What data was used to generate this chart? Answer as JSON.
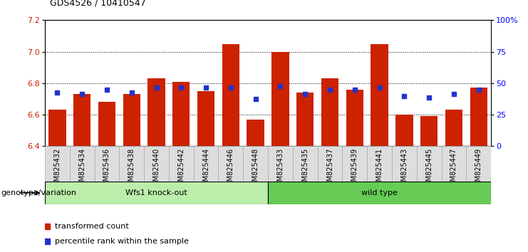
{
  "title": "GDS4526 / 10410547",
  "samples": [
    "GSM825432",
    "GSM825434",
    "GSM825436",
    "GSM825438",
    "GSM825440",
    "GSM825442",
    "GSM825444",
    "GSM825446",
    "GSM825448",
    "GSM825433",
    "GSM825435",
    "GSM825437",
    "GSM825439",
    "GSM825441",
    "GSM825443",
    "GSM825445",
    "GSM825447",
    "GSM825449"
  ],
  "red_values": [
    6.63,
    6.73,
    6.68,
    6.73,
    6.83,
    6.81,
    6.75,
    7.05,
    6.57,
    7.0,
    6.74,
    6.83,
    6.76,
    7.05,
    6.6,
    6.59,
    6.63,
    6.77
  ],
  "blue_values": [
    6.74,
    6.73,
    6.76,
    6.74,
    6.77,
    6.77,
    6.77,
    6.77,
    6.7,
    6.78,
    6.73,
    6.76,
    6.76,
    6.77,
    6.72,
    6.71,
    6.73,
    6.76
  ],
  "group1_label": "Wfs1 knock-out",
  "group2_label": "wild type",
  "group1_count": 9,
  "group2_count": 9,
  "ymin": 6.4,
  "ymax": 7.2,
  "y_ticks": [
    6.4,
    6.6,
    6.8,
    7.0,
    7.2
  ],
  "right_ticks": [
    0,
    25,
    50,
    75,
    100
  ],
  "bar_color": "#cc2200",
  "blue_color": "#2233cc",
  "group1_bg": "#bbeeaa",
  "group2_bg": "#66cc55",
  "legend_red_label": "transformed count",
  "legend_blue_label": "percentile rank within the sample",
  "genotype_label": "genotype/variation"
}
